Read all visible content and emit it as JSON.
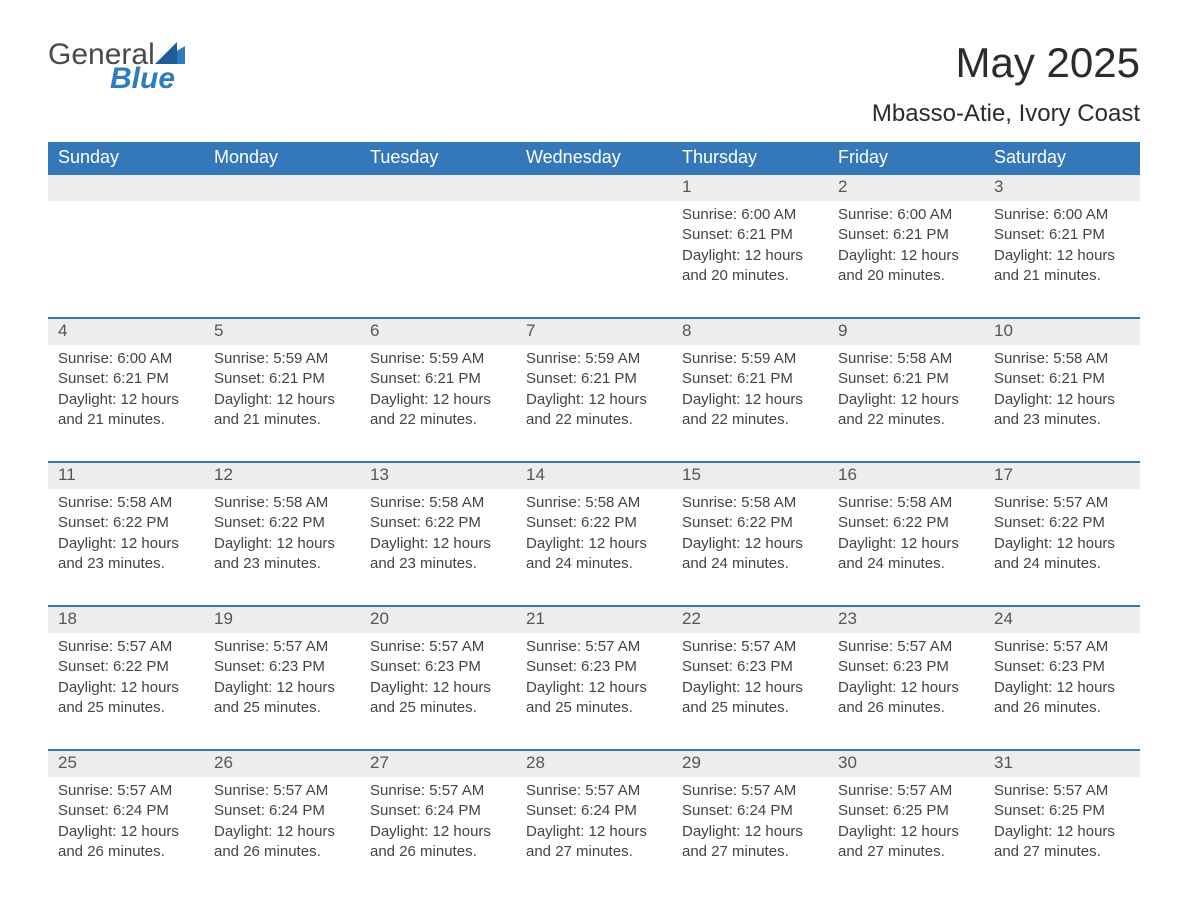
{
  "brand": {
    "name_part1": "General",
    "name_part2": "Blue",
    "text_color": "#4a4a4a",
    "accent_color": "#2f7bbf"
  },
  "title": "May 2025",
  "location": "Mbasso-Atie, Ivory Coast",
  "styling": {
    "header_bg": "#3578b9",
    "header_text": "#ffffff",
    "daynum_bg": "#ededed",
    "daynum_text": "#555555",
    "body_text": "#444444",
    "row_border": "#3578b9",
    "page_bg": "#ffffff",
    "font_family": "Segoe UI, Arial, sans-serif",
    "title_fontsize_pt": 32,
    "location_fontsize_pt": 18,
    "header_fontsize_pt": 14,
    "cell_fontsize_pt": 11
  },
  "calendar": {
    "columns": [
      "Sunday",
      "Monday",
      "Tuesday",
      "Wednesday",
      "Thursday",
      "Friday",
      "Saturday"
    ],
    "weeks": [
      [
        {
          "day": "",
          "sunrise": "",
          "sunset": "",
          "daylight": ""
        },
        {
          "day": "",
          "sunrise": "",
          "sunset": "",
          "daylight": ""
        },
        {
          "day": "",
          "sunrise": "",
          "sunset": "",
          "daylight": ""
        },
        {
          "day": "",
          "sunrise": "",
          "sunset": "",
          "daylight": ""
        },
        {
          "day": "1",
          "sunrise": "Sunrise: 6:00 AM",
          "sunset": "Sunset: 6:21 PM",
          "daylight": "Daylight: 12 hours and 20 minutes."
        },
        {
          "day": "2",
          "sunrise": "Sunrise: 6:00 AM",
          "sunset": "Sunset: 6:21 PM",
          "daylight": "Daylight: 12 hours and 20 minutes."
        },
        {
          "day": "3",
          "sunrise": "Sunrise: 6:00 AM",
          "sunset": "Sunset: 6:21 PM",
          "daylight": "Daylight: 12 hours and 21 minutes."
        }
      ],
      [
        {
          "day": "4",
          "sunrise": "Sunrise: 6:00 AM",
          "sunset": "Sunset: 6:21 PM",
          "daylight": "Daylight: 12 hours and 21 minutes."
        },
        {
          "day": "5",
          "sunrise": "Sunrise: 5:59 AM",
          "sunset": "Sunset: 6:21 PM",
          "daylight": "Daylight: 12 hours and 21 minutes."
        },
        {
          "day": "6",
          "sunrise": "Sunrise: 5:59 AM",
          "sunset": "Sunset: 6:21 PM",
          "daylight": "Daylight: 12 hours and 22 minutes."
        },
        {
          "day": "7",
          "sunrise": "Sunrise: 5:59 AM",
          "sunset": "Sunset: 6:21 PM",
          "daylight": "Daylight: 12 hours and 22 minutes."
        },
        {
          "day": "8",
          "sunrise": "Sunrise: 5:59 AM",
          "sunset": "Sunset: 6:21 PM",
          "daylight": "Daylight: 12 hours and 22 minutes."
        },
        {
          "day": "9",
          "sunrise": "Sunrise: 5:58 AM",
          "sunset": "Sunset: 6:21 PM",
          "daylight": "Daylight: 12 hours and 22 minutes."
        },
        {
          "day": "10",
          "sunrise": "Sunrise: 5:58 AM",
          "sunset": "Sunset: 6:21 PM",
          "daylight": "Daylight: 12 hours and 23 minutes."
        }
      ],
      [
        {
          "day": "11",
          "sunrise": "Sunrise: 5:58 AM",
          "sunset": "Sunset: 6:22 PM",
          "daylight": "Daylight: 12 hours and 23 minutes."
        },
        {
          "day": "12",
          "sunrise": "Sunrise: 5:58 AM",
          "sunset": "Sunset: 6:22 PM",
          "daylight": "Daylight: 12 hours and 23 minutes."
        },
        {
          "day": "13",
          "sunrise": "Sunrise: 5:58 AM",
          "sunset": "Sunset: 6:22 PM",
          "daylight": "Daylight: 12 hours and 23 minutes."
        },
        {
          "day": "14",
          "sunrise": "Sunrise: 5:58 AM",
          "sunset": "Sunset: 6:22 PM",
          "daylight": "Daylight: 12 hours and 24 minutes."
        },
        {
          "day": "15",
          "sunrise": "Sunrise: 5:58 AM",
          "sunset": "Sunset: 6:22 PM",
          "daylight": "Daylight: 12 hours and 24 minutes."
        },
        {
          "day": "16",
          "sunrise": "Sunrise: 5:58 AM",
          "sunset": "Sunset: 6:22 PM",
          "daylight": "Daylight: 12 hours and 24 minutes."
        },
        {
          "day": "17",
          "sunrise": "Sunrise: 5:57 AM",
          "sunset": "Sunset: 6:22 PM",
          "daylight": "Daylight: 12 hours and 24 minutes."
        }
      ],
      [
        {
          "day": "18",
          "sunrise": "Sunrise: 5:57 AM",
          "sunset": "Sunset: 6:22 PM",
          "daylight": "Daylight: 12 hours and 25 minutes."
        },
        {
          "day": "19",
          "sunrise": "Sunrise: 5:57 AM",
          "sunset": "Sunset: 6:23 PM",
          "daylight": "Daylight: 12 hours and 25 minutes."
        },
        {
          "day": "20",
          "sunrise": "Sunrise: 5:57 AM",
          "sunset": "Sunset: 6:23 PM",
          "daylight": "Daylight: 12 hours and 25 minutes."
        },
        {
          "day": "21",
          "sunrise": "Sunrise: 5:57 AM",
          "sunset": "Sunset: 6:23 PM",
          "daylight": "Daylight: 12 hours and 25 minutes."
        },
        {
          "day": "22",
          "sunrise": "Sunrise: 5:57 AM",
          "sunset": "Sunset: 6:23 PM",
          "daylight": "Daylight: 12 hours and 25 minutes."
        },
        {
          "day": "23",
          "sunrise": "Sunrise: 5:57 AM",
          "sunset": "Sunset: 6:23 PM",
          "daylight": "Daylight: 12 hours and 26 minutes."
        },
        {
          "day": "24",
          "sunrise": "Sunrise: 5:57 AM",
          "sunset": "Sunset: 6:23 PM",
          "daylight": "Daylight: 12 hours and 26 minutes."
        }
      ],
      [
        {
          "day": "25",
          "sunrise": "Sunrise: 5:57 AM",
          "sunset": "Sunset: 6:24 PM",
          "daylight": "Daylight: 12 hours and 26 minutes."
        },
        {
          "day": "26",
          "sunrise": "Sunrise: 5:57 AM",
          "sunset": "Sunset: 6:24 PM",
          "daylight": "Daylight: 12 hours and 26 minutes."
        },
        {
          "day": "27",
          "sunrise": "Sunrise: 5:57 AM",
          "sunset": "Sunset: 6:24 PM",
          "daylight": "Daylight: 12 hours and 26 minutes."
        },
        {
          "day": "28",
          "sunrise": "Sunrise: 5:57 AM",
          "sunset": "Sunset: 6:24 PM",
          "daylight": "Daylight: 12 hours and 27 minutes."
        },
        {
          "day": "29",
          "sunrise": "Sunrise: 5:57 AM",
          "sunset": "Sunset: 6:24 PM",
          "daylight": "Daylight: 12 hours and 27 minutes."
        },
        {
          "day": "30",
          "sunrise": "Sunrise: 5:57 AM",
          "sunset": "Sunset: 6:25 PM",
          "daylight": "Daylight: 12 hours and 27 minutes."
        },
        {
          "day": "31",
          "sunrise": "Sunrise: 5:57 AM",
          "sunset": "Sunset: 6:25 PM",
          "daylight": "Daylight: 12 hours and 27 minutes."
        }
      ]
    ]
  }
}
